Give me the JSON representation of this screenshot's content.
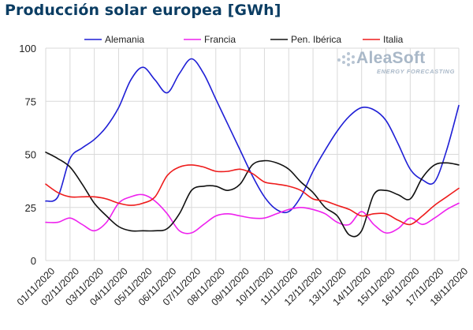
{
  "title": "Producción solar europea [GWh]",
  "logo": {
    "brand": "AleaSoft",
    "tagline": "ENERGY FORECASTING"
  },
  "chart_data": {
    "type": "line",
    "smooth": true,
    "categories": [
      "01/11/2020",
      "02/11/2020",
      "03/11/2020",
      "04/11/2020",
      "05/11/2020",
      "06/11/2020",
      "07/11/2020",
      "08/11/2020",
      "09/11/2020",
      "10/11/2020",
      "11/11/2020",
      "12/11/2020",
      "13/11/2020",
      "14/11/2020",
      "15/11/2020",
      "16/11/2020",
      "17/11/2020",
      "18/11/2020"
    ],
    "xlabels": [
      "01/11/2020",
      "02/11/2020",
      "03/11/2020",
      "04/11/2020",
      "05/11/2020",
      "06/11/2020",
      "07/11/2020",
      "08/11/2020",
      "09/11/2020",
      "10/11/2020",
      "11/11/2020",
      "12/11/2020",
      "13/11/2020",
      "14/11/2020",
      "15/11/2020",
      "16/11/2020",
      "17/11/2020",
      "18/11/2020"
    ],
    "x": [
      0,
      0.5,
      1,
      1.5,
      2,
      2.5,
      3,
      3.5,
      4,
      4.5,
      5,
      5.5,
      6,
      6.5,
      7,
      7.5,
      8,
      8.5,
      9,
      9.5,
      10,
      10.5,
      11,
      11.5,
      12,
      12.5,
      13,
      13.5,
      14,
      14.5,
      15,
      15.5,
      16,
      16.5,
      17
    ],
    "yticks": [
      0,
      25,
      50,
      75,
      100
    ],
    "ylim": [
      0,
      100
    ],
    "grid": true,
    "legend": "top",
    "series": [
      {
        "name": "Alemania",
        "color": "#1f1fd6",
        "values": [
          28,
          30,
          48,
          53,
          57,
          63,
          72,
          85,
          91,
          85,
          79,
          88,
          95,
          88,
          76,
          64,
          52,
          40,
          30,
          24,
          23,
          30,
          42,
          52,
          61,
          68,
          72,
          71,
          66,
          55,
          43,
          38,
          37,
          52,
          73
        ]
      },
      {
        "name": "Francia",
        "color": "#ee22ee",
        "values": [
          18,
          18,
          20,
          17,
          14,
          18,
          27,
          30,
          31,
          28,
          22,
          14,
          13,
          17,
          21,
          22,
          21,
          20,
          20,
          22,
          24,
          25,
          24,
          22,
          18,
          17,
          23,
          17,
          13,
          15,
          20,
          17,
          20,
          24,
          27
        ]
      },
      {
        "name": "Pen. Ibérica",
        "color": "#111111",
        "values": [
          51,
          48,
          44,
          36,
          27,
          21,
          16,
          14,
          14,
          14,
          15,
          22,
          33,
          35,
          35,
          33,
          36,
          45,
          47,
          46,
          43,
          37,
          32,
          25,
          21,
          12,
          14,
          31,
          33,
          31,
          29,
          39,
          45,
          46,
          45
        ]
      },
      {
        "name": "Italia",
        "color": "#ee1c1c",
        "values": [
          36,
          32,
          30,
          30,
          30,
          29,
          27,
          26,
          27,
          30,
          40,
          44,
          45,
          44,
          42,
          42,
          43,
          41,
          37,
          36,
          35,
          33,
          29,
          28,
          26,
          24,
          21,
          22,
          22,
          19,
          17,
          21,
          26,
          30,
          34
        ]
      }
    ]
  }
}
